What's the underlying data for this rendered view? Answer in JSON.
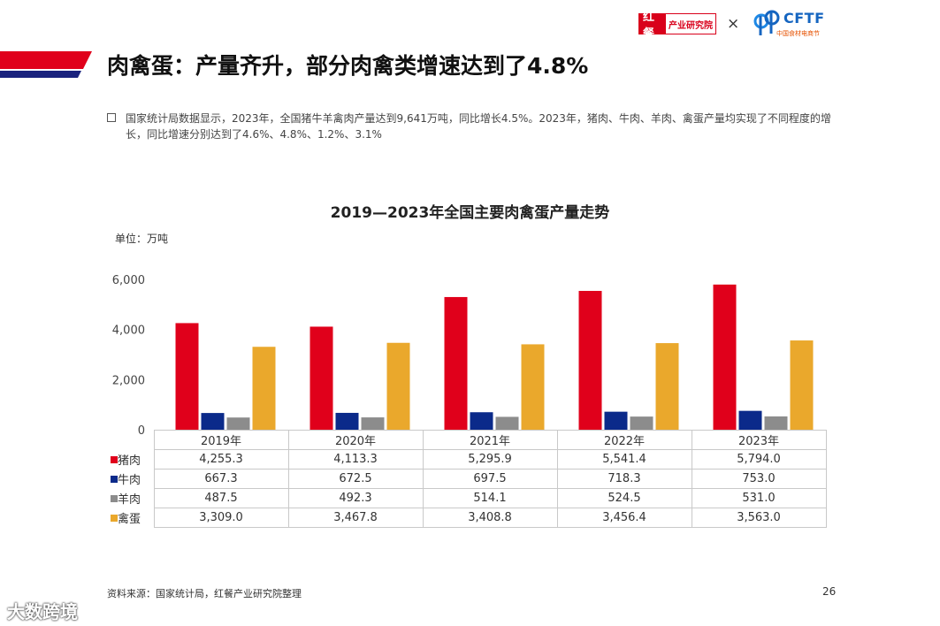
{
  "header": {
    "logo_hongcan_mark": "红餐",
    "logo_hongcan_text": "产业研究院",
    "logo_separator": "×",
    "logo_cftf_text": "CFTF",
    "logo_cftf_sub": "中国食材电商节"
  },
  "title": "肉禽蛋：产量齐升，部分肉禽类增速达到了4.8%",
  "description": "国家统计局数据显示，2023年，全国猪牛羊禽肉产量达到9,641万吨，同比增长4.5%。2023年，猪肉、牛肉、羊肉、禽蛋产量均实现了不同程度的增长，同比增速分别达到了4.6%、4.8%、1.2%、3.1%",
  "chart_data": {
    "type": "bar",
    "title": "2019—2023年全国主要肉禽蛋产量走势",
    "unit_label": "单位：万吨",
    "categories": [
      "2019年",
      "2020年",
      "2021年",
      "2022年",
      "2023年"
    ],
    "ylim": [
      0,
      6000
    ],
    "yticks": [
      0,
      2000,
      4000,
      6000
    ],
    "ytick_labels": [
      "0",
      "2,000",
      "4,000",
      "6,000"
    ],
    "series": [
      {
        "name": "猪肉",
        "color": "#e0001b",
        "values": [
          4255.3,
          4113.3,
          5295.9,
          5541.4,
          5794.0
        ],
        "labels": [
          "4,255.3",
          "4,113.3",
          "5,295.9",
          "5,541.4",
          "5,794.0"
        ]
      },
      {
        "name": "牛肉",
        "color": "#0b2a8a",
        "values": [
          667.3,
          672.5,
          697.5,
          718.3,
          753.0
        ],
        "labels": [
          "667.3",
          "672.5",
          "697.5",
          "718.3",
          "753.0"
        ]
      },
      {
        "name": "羊肉",
        "color": "#8c8c8c",
        "values": [
          487.5,
          492.3,
          514.1,
          524.5,
          531.0
        ],
        "labels": [
          "487.5",
          "492.3",
          "514.1",
          "524.5",
          "531.0"
        ]
      },
      {
        "name": "禽蛋",
        "color": "#eaa82c",
        "values": [
          3309.0,
          3467.8,
          3408.8,
          3456.4,
          3563.0
        ],
        "labels": [
          "3,309.0",
          "3,467.8",
          "3,408.8",
          "3,456.4",
          "3,563.0"
        ]
      }
    ],
    "grid": false,
    "legend": "data-table-below"
  },
  "source": "资料来源：国家统计局，红餐产业研究院整理",
  "page_number": "26",
  "watermark_bottom": "大数跨境"
}
